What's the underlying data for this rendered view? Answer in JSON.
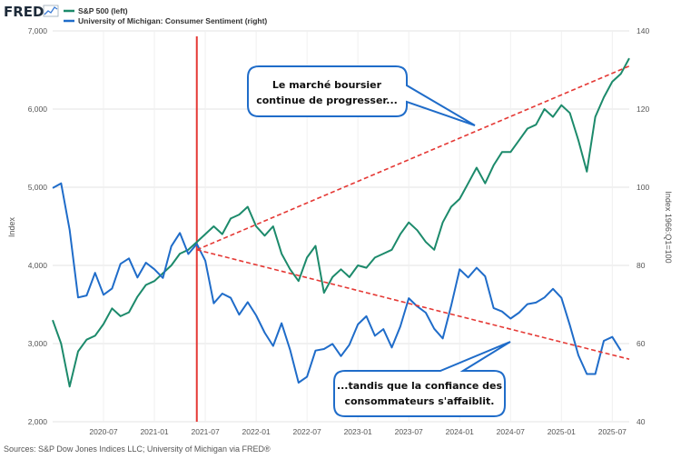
{
  "header": {
    "logo": "FRED",
    "legend": [
      {
        "label": "S&P 500 (left)",
        "color": "#1c8a6b"
      },
      {
        "label": "University of Michigan: Consumer Sentiment (right)",
        "color": "#1f6cc9"
      }
    ]
  },
  "footer": {
    "source": "Sources: S&P Dow Jones Indices LLC; University of Michigan via FRED®"
  },
  "annotations": {
    "top_callout": [
      "Le marché boursier",
      "continue de progresser..."
    ],
    "bottom_callout": [
      "...tandis que la confiance des",
      "consommateurs s'affaiblit."
    ]
  },
  "colors": {
    "sp500": "#1c8a6b",
    "sentiment": "#1f6cc9",
    "vertical_line": "#e53935",
    "trend": "#e53935",
    "grid": "#e3e3e3"
  },
  "chart_data": {
    "type": "line",
    "x_tick_labels": [
      "2020-07",
      "2021-01",
      "2021-07",
      "2022-01",
      "2022-07",
      "2023-01",
      "2023-07",
      "2024-01",
      "2024-07",
      "2025-01",
      "2025-07"
    ],
    "x_ticks": [
      "2020-07",
      "2021-01",
      "2021-07",
      "2022-01",
      "2022-07",
      "2023-01",
      "2023-07",
      "2024-01",
      "2024-07",
      "2025-01",
      "2025-07"
    ],
    "xlim": [
      "2020-01",
      "2025-09"
    ],
    "y_left": {
      "label": "Index",
      "ylim": [
        2000,
        7000
      ],
      "ticks": [
        2000,
        3000,
        4000,
        5000,
        6000,
        7000
      ],
      "tick_labels": [
        "2,000",
        "3,000",
        "4,000",
        "5,000",
        "6,000",
        "7,000"
      ]
    },
    "y_right": {
      "label": "Index 1966:Q1=100",
      "ylim": [
        40,
        140
      ],
      "ticks": [
        40,
        60,
        80,
        100,
        120,
        140
      ],
      "tick_labels": [
        "40",
        "60",
        "80",
        "100",
        "120",
        "140"
      ]
    },
    "vertical_line_date": "2021-06",
    "series": [
      {
        "name": "S&P 500 (left)",
        "axis": "left",
        "x": [
          "2020-01",
          "2020-02",
          "2020-03",
          "2020-04",
          "2020-05",
          "2020-06",
          "2020-07",
          "2020-08",
          "2020-09",
          "2020-10",
          "2020-11",
          "2020-12",
          "2021-01",
          "2021-02",
          "2021-03",
          "2021-04",
          "2021-05",
          "2021-06",
          "2021-07",
          "2021-08",
          "2021-09",
          "2021-10",
          "2021-11",
          "2021-12",
          "2022-01",
          "2022-02",
          "2022-03",
          "2022-04",
          "2022-05",
          "2022-06",
          "2022-07",
          "2022-08",
          "2022-09",
          "2022-10",
          "2022-11",
          "2022-12",
          "2023-01",
          "2023-02",
          "2023-03",
          "2023-04",
          "2023-05",
          "2023-06",
          "2023-07",
          "2023-08",
          "2023-09",
          "2023-10",
          "2023-11",
          "2023-12",
          "2024-01",
          "2024-02",
          "2024-03",
          "2024-04",
          "2024-05",
          "2024-06",
          "2024-07",
          "2024-08",
          "2024-09",
          "2024-10",
          "2024-11",
          "2024-12",
          "2025-01",
          "2025-02",
          "2025-03",
          "2025-04",
          "2025-05",
          "2025-06",
          "2025-07",
          "2025-08",
          "2025-09"
        ],
        "values": [
          3300,
          3000,
          2450,
          2900,
          3050,
          3100,
          3250,
          3450,
          3350,
          3400,
          3600,
          3750,
          3800,
          3900,
          4000,
          4150,
          4200,
          4300,
          4400,
          4500,
          4400,
          4600,
          4650,
          4750,
          4500,
          4380,
          4500,
          4150,
          3950,
          3800,
          4100,
          4250,
          3650,
          3850,
          3950,
          3850,
          4000,
          3970,
          4100,
          4150,
          4200,
          4400,
          4550,
          4450,
          4300,
          4200,
          4550,
          4750,
          4850,
          5050,
          5250,
          5050,
          5280,
          5450,
          5450,
          5600,
          5750,
          5800,
          6000,
          5900,
          6050,
          5950,
          5600,
          5200,
          5900,
          6150,
          6350,
          6450,
          6650
        ]
      },
      {
        "name": "University of Michigan: Consumer Sentiment (right)",
        "axis": "right",
        "x": [
          "2020-01",
          "2020-02",
          "2020-03",
          "2020-04",
          "2020-05",
          "2020-06",
          "2020-07",
          "2020-08",
          "2020-09",
          "2020-10",
          "2020-11",
          "2020-12",
          "2021-01",
          "2021-02",
          "2021-03",
          "2021-04",
          "2021-05",
          "2021-06",
          "2021-07",
          "2021-08",
          "2021-09",
          "2021-10",
          "2021-11",
          "2021-12",
          "2022-01",
          "2022-02",
          "2022-03",
          "2022-04",
          "2022-05",
          "2022-06",
          "2022-07",
          "2022-08",
          "2022-09",
          "2022-10",
          "2022-11",
          "2022-12",
          "2023-01",
          "2023-02",
          "2023-03",
          "2023-04",
          "2023-05",
          "2023-06",
          "2023-07",
          "2023-08",
          "2023-09",
          "2023-10",
          "2023-11",
          "2023-12",
          "2024-01",
          "2024-02",
          "2024-03",
          "2024-04",
          "2024-05",
          "2024-06",
          "2024-07",
          "2024-08",
          "2024-09",
          "2024-10",
          "2024-11",
          "2024-12",
          "2025-01",
          "2025-02",
          "2025-03",
          "2025-04",
          "2025-05",
          "2025-06",
          "2025-07",
          "2025-08"
        ],
        "values": [
          99.8,
          101.0,
          89.1,
          71.8,
          72.3,
          78.1,
          72.5,
          74.1,
          80.4,
          81.8,
          76.9,
          80.7,
          79.0,
          76.8,
          84.9,
          88.3,
          82.9,
          85.5,
          81.2,
          70.3,
          72.8,
          71.7,
          67.4,
          70.6,
          67.2,
          62.8,
          59.4,
          65.2,
          58.4,
          50.0,
          51.5,
          58.2,
          58.6,
          59.9,
          56.8,
          59.7,
          64.9,
          67.0,
          62.0,
          63.7,
          59.0,
          64.4,
          71.6,
          69.5,
          67.9,
          63.8,
          61.3,
          69.7,
          79.0,
          76.9,
          79.4,
          77.2,
          69.1,
          68.2,
          66.4,
          67.9,
          70.1,
          70.5,
          71.8,
          74.0,
          71.7,
          64.7,
          57.0,
          52.2,
          52.2,
          60.7,
          61.7,
          58.2
        ]
      }
    ],
    "trend_lines": [
      {
        "name": "S&P 500 trend",
        "axis": "left",
        "from": {
          "x": "2021-06",
          "y": 4200
        },
        "to": {
          "x": "2025-09",
          "y": 6550
        }
      },
      {
        "name": "Sentiment trend",
        "axis": "right",
        "from": {
          "x": "2021-06",
          "y": 84
        },
        "to": {
          "x": "2025-09",
          "y": 56
        }
      }
    ],
    "grid": true,
    "legend_position": "top-left"
  }
}
